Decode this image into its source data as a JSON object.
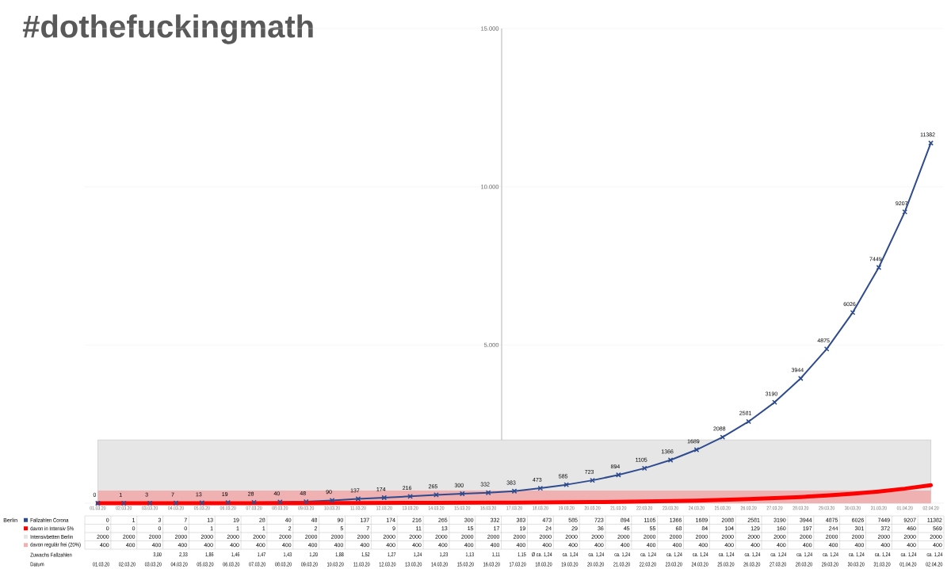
{
  "chart_data": {
    "type": "line",
    "title": "#dothefuckingmath",
    "categories": [
      "01.03.20",
      "02.03.20",
      "03.03.20",
      "04.03.20",
      "05.03.20",
      "06.03.20",
      "07.03.20",
      "08.03.20",
      "09.03.20",
      "10.03.20",
      "11.03.20",
      "12.03.20",
      "13.03.20",
      "14.03.20",
      "15.03.20",
      "16.03.20",
      "17.03.20",
      "18.03.20",
      "19.03.20",
      "20.03.20",
      "21.03.20",
      "22.03.20",
      "23.03.20",
      "24.03.20",
      "25.03.20",
      "26.03.20",
      "27.03.20",
      "28.03.20",
      "29.03.20",
      "30.03.20",
      "31.03.20",
      "01.04.20",
      "02.04.20"
    ],
    "series": [
      {
        "name": "Fallzahlen Corona",
        "marker": "cross",
        "color": "#2e4b8e",
        "values": [
          0,
          1,
          3,
          7,
          13,
          19,
          28,
          40,
          48,
          90,
          137,
          174,
          216,
          265,
          300,
          332,
          383,
          473,
          585,
          723,
          894,
          1105,
          1366,
          1689,
          2088,
          2581,
          3190,
          3944,
          4875,
          6026,
          7449,
          9207,
          11382
        ],
        "value_labels": [
          "0",
          "1",
          "3",
          "7",
          "13",
          "19",
          "28",
          "40",
          "48",
          "90",
          "137",
          "174",
          "216",
          "265",
          "300",
          "332",
          "383",
          "473",
          "585",
          "723",
          "894",
          "1105",
          "1366",
          "1689",
          "2088",
          "2581",
          "3190",
          "3944",
          "4875",
          "6026",
          "7449",
          "9207",
          "11382"
        ]
      },
      {
        "name": "davon in Intensiv 5%",
        "color": "#ff0000",
        "values": [
          0,
          0,
          0,
          0,
          1,
          1,
          1,
          2,
          2,
          5,
          7,
          9,
          11,
          13,
          15,
          17,
          19,
          24,
          29,
          36,
          45,
          55,
          68,
          84,
          104,
          129,
          160,
          197,
          244,
          301,
          372,
          460,
          569
        ]
      },
      {
        "name": "Intensivbetten Berlin",
        "type": "area",
        "color": "#e6e6e6",
        "values": [
          2000,
          2000,
          2000,
          2000,
          2000,
          2000,
          2000,
          2000,
          2000,
          2000,
          2000,
          2000,
          2000,
          2000,
          2000,
          2000,
          2000,
          2000,
          2000,
          2000,
          2000,
          2000,
          2000,
          2000,
          2000,
          2000,
          2000,
          2000,
          2000,
          2000,
          2000,
          2000,
          2000
        ]
      },
      {
        "name": "davon regulär frei (20%)",
        "type": "area",
        "color": "#efb1b1",
        "values": [
          400,
          400,
          400,
          400,
          400,
          400,
          400,
          400,
          400,
          400,
          400,
          400,
          400,
          400,
          400,
          400,
          400,
          400,
          400,
          400,
          400,
          400,
          400,
          400,
          400,
          400,
          400,
          400,
          400,
          400,
          400,
          400,
          400
        ]
      }
    ],
    "ylim": [
      0,
      15000
    ],
    "yticks": [
      {
        "value": 5000,
        "label": "5.000"
      },
      {
        "value": 10000,
        "label": "10.000"
      },
      {
        "value": 15000,
        "label": "15.000"
      }
    ],
    "grid": "y",
    "legend": "bottom",
    "data_labels": true,
    "annotations": [
      "Berlin",
      "Zuwachs Fallzahlen",
      "Datum",
      "3,00",
      "2,33",
      "1,86",
      "1,46",
      "1,47",
      "1,43",
      "1,20",
      "1,88",
      "1,52",
      "1,27",
      "1,24",
      "1,23",
      "1,13",
      "1,11",
      "1,15",
      "Ø ca. 1,24",
      "ca. 1,24",
      "ca. 1,24",
      "ca. 1,24",
      "ca. 1,24",
      "ca. 1,24",
      "ca. 1,24",
      "ca. 1,24",
      "ca. 1,24",
      "ca. 1,24",
      "ca. 1,24",
      "ca. 1,24",
      "ca. 1,24",
      "ca. 1,24",
      "ca. 1,24",
      "ca. 1,24"
    ]
  }
}
